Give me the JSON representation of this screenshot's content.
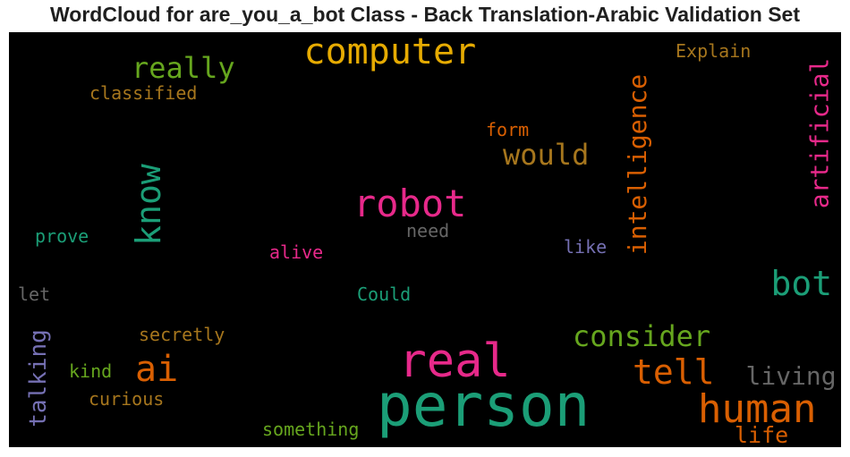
{
  "chart_data": {
    "type": "wordcloud",
    "title": "WordCloud for are_you_a_bot Class - Back Translation-Arabic Validation Set",
    "background": "#000000",
    "words": [
      {
        "text": "person",
        "color": "#1b9e77",
        "orientation": "horizontal"
      },
      {
        "text": "real",
        "color": "#e7298a",
        "orientation": "horizontal"
      },
      {
        "text": "computer",
        "color": "#e6ab02",
        "orientation": "horizontal"
      },
      {
        "text": "robot",
        "color": "#e7298a",
        "orientation": "horizontal"
      },
      {
        "text": "human",
        "color": "#d95f02",
        "orientation": "horizontal"
      },
      {
        "text": "bot",
        "color": "#1b9e77",
        "orientation": "horizontal"
      },
      {
        "text": "ai",
        "color": "#d95f02",
        "orientation": "horizontal"
      },
      {
        "text": "know",
        "color": "#1b9e77",
        "orientation": "vertical"
      },
      {
        "text": "tell",
        "color": "#d95f02",
        "orientation": "horizontal"
      },
      {
        "text": "really",
        "color": "#66a61e",
        "orientation": "horizontal"
      },
      {
        "text": "consider",
        "color": "#66a61e",
        "orientation": "horizontal"
      },
      {
        "text": "would",
        "color": "#a6761d",
        "orientation": "horizontal"
      },
      {
        "text": "intelligence",
        "color": "#d95f02",
        "orientation": "vertical"
      },
      {
        "text": "artificial",
        "color": "#e7298a",
        "orientation": "vertical"
      },
      {
        "text": "living",
        "color": "#666666",
        "orientation": "horizontal"
      },
      {
        "text": "talking",
        "color": "#7570b3",
        "orientation": "vertical"
      },
      {
        "text": "life",
        "color": "#d95f02",
        "orientation": "horizontal"
      },
      {
        "text": "classified",
        "color": "#a6761d",
        "orientation": "horizontal"
      },
      {
        "text": "Explain",
        "color": "#a6761d",
        "orientation": "horizontal"
      },
      {
        "text": "form",
        "color": "#d95f02",
        "orientation": "horizontal"
      },
      {
        "text": "secretly",
        "color": "#a6761d",
        "orientation": "horizontal"
      },
      {
        "text": "curious",
        "color": "#a6761d",
        "orientation": "horizontal"
      },
      {
        "text": "something",
        "color": "#66a61e",
        "orientation": "horizontal"
      },
      {
        "text": "prove",
        "color": "#1b9e77",
        "orientation": "horizontal"
      },
      {
        "text": "alive",
        "color": "#e7298a",
        "orientation": "horizontal"
      },
      {
        "text": "need",
        "color": "#666666",
        "orientation": "horizontal"
      },
      {
        "text": "like",
        "color": "#7570b3",
        "orientation": "horizontal"
      },
      {
        "text": "Could",
        "color": "#1b9e77",
        "orientation": "horizontal"
      },
      {
        "text": "let",
        "color": "#666666",
        "orientation": "horizontal"
      },
      {
        "text": "kind",
        "color": "#66a61e",
        "orientation": "horizontal"
      }
    ]
  }
}
